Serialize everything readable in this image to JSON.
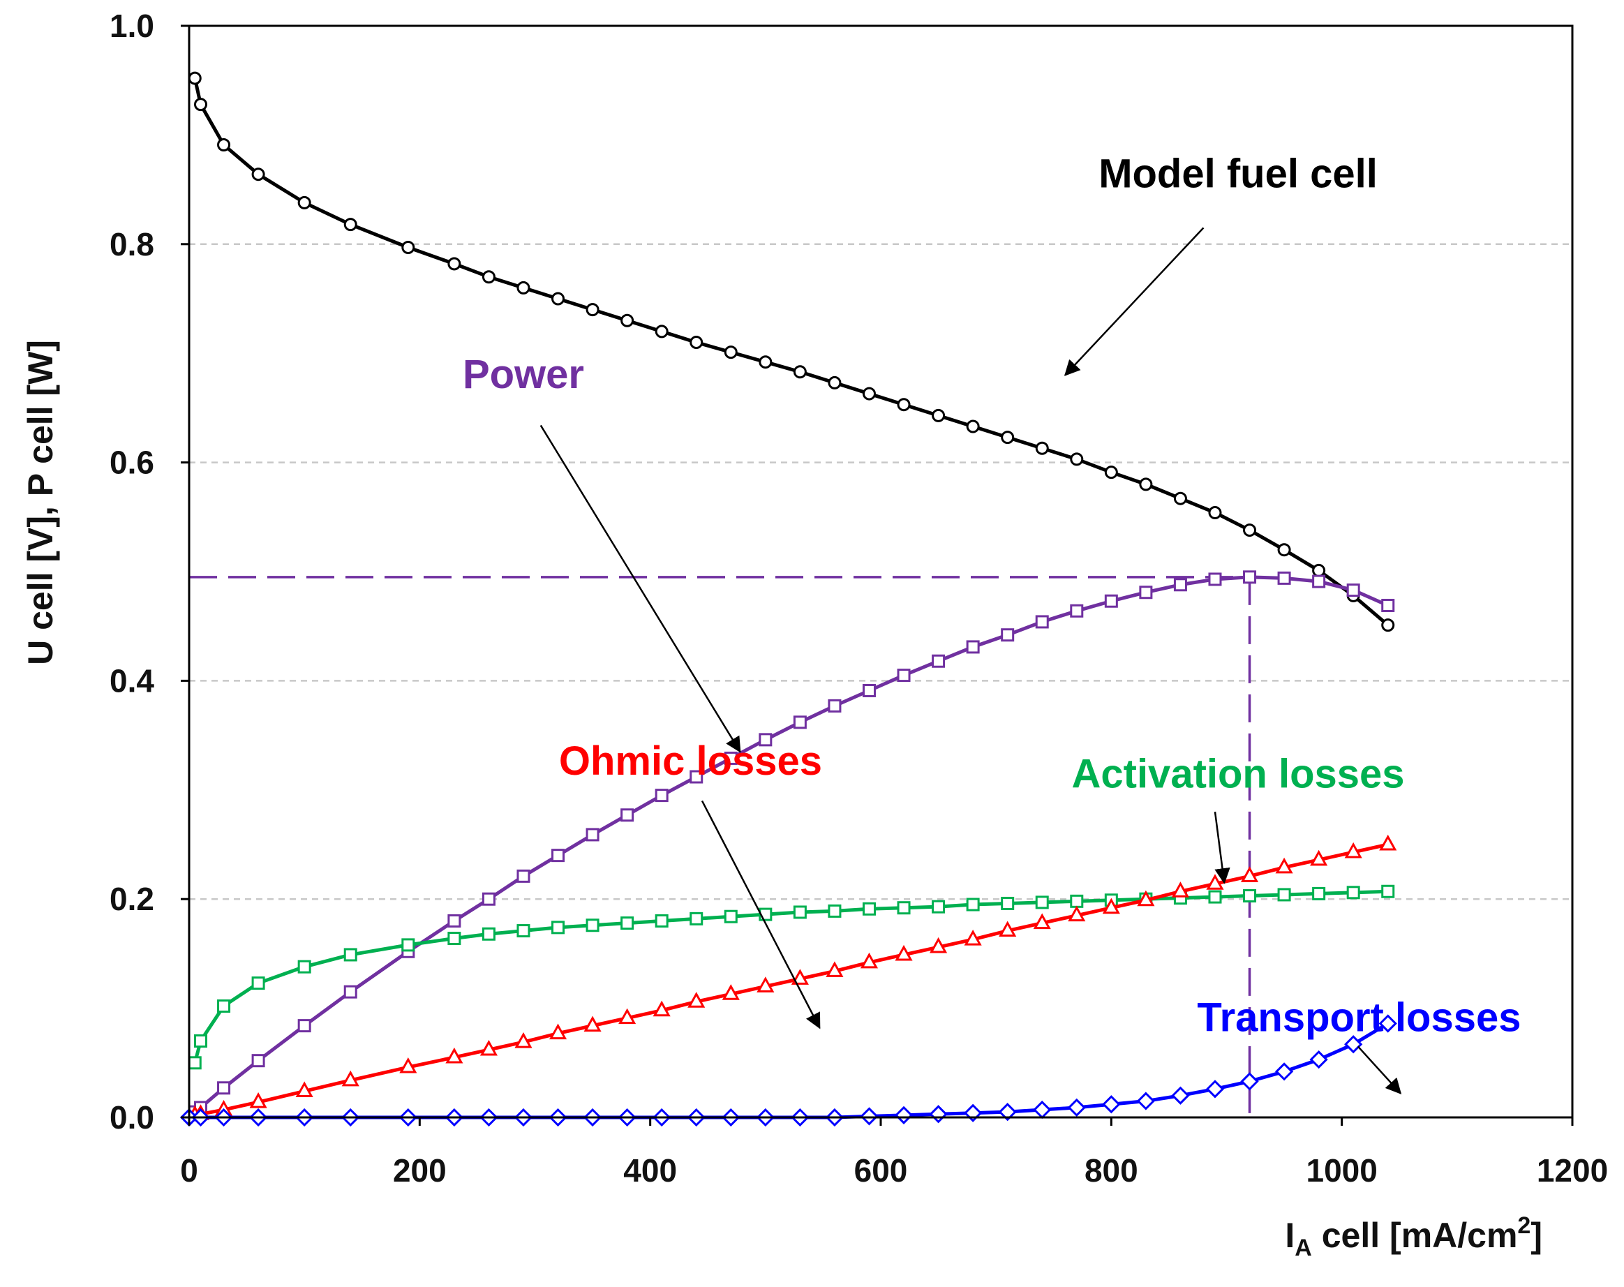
{
  "chart_data": {
    "type": "line",
    "title": "",
    "xlabel": {
      "main": "I",
      "sub": "A",
      "rest": " cell [mA/cm",
      "sup": "2",
      "end": "]"
    },
    "ylabel": "U cell [V], P cell [W]",
    "xlim": [
      0,
      1200
    ],
    "ylim": [
      0,
      1.0
    ],
    "xticks": [
      0,
      200,
      400,
      600,
      800,
      1000,
      1200
    ],
    "yticks": [
      0.0,
      0.2,
      0.4,
      0.6,
      0.8,
      1.0
    ],
    "xtick_labels": [
      "0",
      "200",
      "400",
      "600",
      "800",
      "1000",
      "1200"
    ],
    "ytick_labels": [
      "0.0",
      "0.2",
      "0.4",
      "0.6",
      "0.8",
      "1.0"
    ],
    "gridlines_y": [
      0.2,
      0.4,
      0.6,
      0.8
    ],
    "grid": "horizontal dashed",
    "series": [
      {
        "name": "Model fuel cell",
        "color": "#000000",
        "marker": "circle",
        "x": [
          5,
          10,
          30,
          60,
          100,
          140,
          190,
          230,
          260,
          290,
          320,
          350,
          380,
          410,
          440,
          470,
          500,
          530,
          560,
          590,
          620,
          650,
          680,
          710,
          740,
          770,
          800,
          830,
          860,
          890,
          920,
          950,
          980,
          1010,
          1040
        ],
        "y": [
          0.952,
          0.928,
          0.891,
          0.864,
          0.838,
          0.818,
          0.797,
          0.782,
          0.77,
          0.76,
          0.75,
          0.74,
          0.73,
          0.72,
          0.71,
          0.701,
          0.692,
          0.683,
          0.673,
          0.663,
          0.653,
          0.643,
          0.633,
          0.623,
          0.613,
          0.603,
          0.591,
          0.58,
          0.567,
          0.554,
          0.538,
          0.52,
          0.501,
          0.478,
          0.451
        ]
      },
      {
        "name": "Power",
        "color": "#7030A0",
        "marker": "square",
        "x": [
          5,
          10,
          30,
          60,
          100,
          140,
          190,
          230,
          260,
          290,
          320,
          350,
          380,
          410,
          440,
          470,
          500,
          530,
          560,
          590,
          620,
          650,
          680,
          710,
          740,
          770,
          800,
          830,
          860,
          890,
          920,
          950,
          980,
          1010,
          1040
        ],
        "y": [
          0.005,
          0.009,
          0.027,
          0.052,
          0.084,
          0.115,
          0.152,
          0.18,
          0.2,
          0.221,
          0.24,
          0.259,
          0.277,
          0.295,
          0.312,
          0.329,
          0.346,
          0.362,
          0.377,
          0.391,
          0.405,
          0.418,
          0.431,
          0.442,
          0.454,
          0.464,
          0.473,
          0.481,
          0.488,
          0.493,
          0.495,
          0.494,
          0.491,
          0.483,
          0.469
        ]
      },
      {
        "name": "Activation losses",
        "color": "#00B050",
        "marker": "square",
        "x": [
          5,
          10,
          30,
          60,
          100,
          140,
          190,
          230,
          260,
          290,
          320,
          350,
          380,
          410,
          440,
          470,
          500,
          530,
          560,
          590,
          620,
          650,
          680,
          710,
          740,
          770,
          800,
          830,
          860,
          890,
          920,
          950,
          980,
          1010,
          1040
        ],
        "y": [
          0.05,
          0.07,
          0.102,
          0.123,
          0.138,
          0.149,
          0.158,
          0.164,
          0.168,
          0.171,
          0.174,
          0.176,
          0.178,
          0.18,
          0.182,
          0.184,
          0.186,
          0.188,
          0.189,
          0.191,
          0.192,
          0.193,
          0.195,
          0.196,
          0.197,
          0.198,
          0.199,
          0.2,
          0.201,
          0.202,
          0.203,
          0.204,
          0.205,
          0.206,
          0.207
        ]
      },
      {
        "name": "Ohmic losses",
        "color": "#FF0000",
        "marker": "triangle",
        "x": [
          5,
          10,
          30,
          60,
          100,
          140,
          190,
          230,
          260,
          290,
          320,
          350,
          380,
          410,
          440,
          470,
          500,
          530,
          560,
          590,
          620,
          650,
          680,
          710,
          740,
          770,
          800,
          830,
          860,
          890,
          920,
          950,
          980,
          1010,
          1040
        ],
        "y": [
          0.002,
          0.003,
          0.007,
          0.014,
          0.024,
          0.034,
          0.046,
          0.055,
          0.062,
          0.069,
          0.077,
          0.084,
          0.091,
          0.098,
          0.106,
          0.113,
          0.12,
          0.127,
          0.134,
          0.142,
          0.149,
          0.156,
          0.163,
          0.171,
          0.178,
          0.185,
          0.192,
          0.199,
          0.207,
          0.214,
          0.221,
          0.229,
          0.236,
          0.243,
          0.25
        ]
      },
      {
        "name": "Transport losses",
        "color": "#0000FF",
        "marker": "diamond",
        "x": [
          0,
          10,
          30,
          60,
          100,
          140,
          190,
          230,
          260,
          290,
          320,
          350,
          380,
          410,
          440,
          470,
          500,
          530,
          560,
          590,
          620,
          650,
          680,
          710,
          740,
          770,
          800,
          830,
          860,
          890,
          920,
          950,
          980,
          1010,
          1040
        ],
        "y": [
          0.0,
          0.0,
          0.0,
          0.0,
          0.0,
          0.0,
          0.0,
          0.0,
          0.0,
          0.0,
          0.0,
          0.0,
          0.0,
          0.0,
          0.0,
          0.0,
          0.0,
          0.0,
          0.0,
          0.001,
          0.002,
          0.003,
          0.004,
          0.005,
          0.007,
          0.009,
          0.012,
          0.015,
          0.02,
          0.026,
          0.033,
          0.042,
          0.053,
          0.067,
          0.086
        ]
      }
    ],
    "reference_lines": {
      "color": "#7030A0",
      "max_power_y": 0.495,
      "max_power_x": 920
    },
    "annotations": [
      {
        "text": "Model fuel cell",
        "color": "#000000",
        "label_at": [
          910,
          0.852
        ],
        "arrow_from": [
          880,
          0.815
        ],
        "arrow_to": [
          760,
          0.68
        ]
      },
      {
        "text": "Power",
        "color": "#7030A0",
        "label_at": [
          290,
          0.668
        ],
        "arrow_from": [
          305,
          0.634
        ],
        "arrow_to": [
          478,
          0.335
        ]
      },
      {
        "text": "Ohmic losses",
        "color": "#FF0000",
        "label_at": [
          435,
          0.314
        ],
        "arrow_from": [
          445,
          0.29
        ],
        "arrow_to": [
          547,
          0.082
        ]
      },
      {
        "text": "Activation losses",
        "color": "#00B050",
        "label_at": [
          910,
          0.302
        ],
        "arrow_from": [
          890,
          0.28
        ],
        "arrow_to": [
          898,
          0.215
        ]
      },
      {
        "text": "Transport losses",
        "color": "#0000FF",
        "label_at": [
          1015,
          0.079
        ],
        "arrow_from": [
          1014,
          0.065
        ],
        "arrow_to": [
          1051,
          0.022
        ]
      }
    ]
  }
}
